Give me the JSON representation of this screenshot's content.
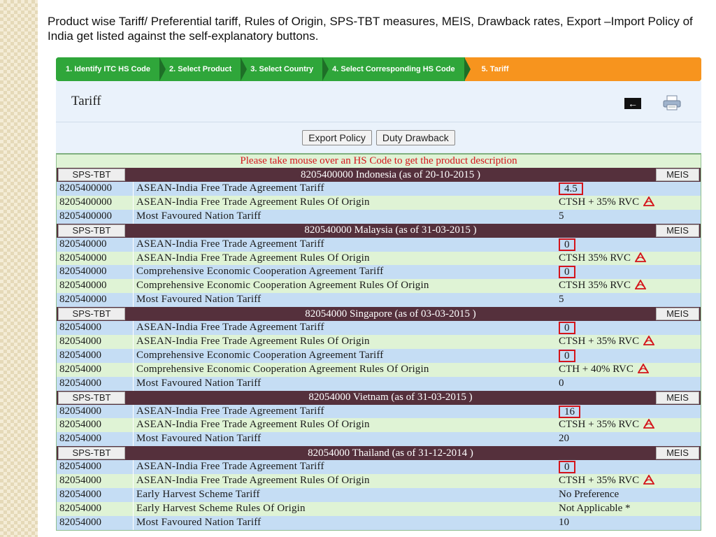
{
  "intro": "Product wise Tariff/ Preferential tariff, Rules of Origin, SPS-TBT measures, MEIS, Drawback rates, Export –Import Policy of India get listed against the self-explanatory buttons.",
  "steps": [
    "1. Identify ITC HS Code",
    "2. Select Product",
    "3. Select Country",
    "4. Select Corresponding HS Code",
    "5. Tariff"
  ],
  "header": {
    "title": "Tariff",
    "back_glyph": "←"
  },
  "buttons": {
    "export_policy": "Export Policy",
    "duty_drawback": "Duty Drawback"
  },
  "notice": "Please take mouse over an HS Code to get the product description",
  "sps_label": "SPS-TBT",
  "meis_label": "MEIS",
  "icons": {
    "back": "back-arrow-icon",
    "print": "printer-icon",
    "pdf": "pdf-icon"
  },
  "colors": {
    "step_green": "#2fa63a",
    "step_active": "#f7941e",
    "country_bar": "#55303c",
    "notice_red": "#d4141a"
  },
  "groups": [
    {
      "title": "8205400000 Indonesia (as of 20-10-2015 )",
      "rows": [
        {
          "code": "8205400000",
          "desc": "ASEAN-India Free Trade Agreement Tariff",
          "value": "4.5",
          "boxed": true,
          "pdf": false
        },
        {
          "code": "8205400000",
          "desc": "ASEAN-India Free Trade Agreement Rules Of Origin",
          "value": "CTSH + 35% RVC",
          "boxed": false,
          "pdf": true
        },
        {
          "code": "8205400000",
          "desc": "Most Favoured Nation Tariff",
          "value": "5",
          "boxed": false,
          "pdf": false
        }
      ]
    },
    {
      "title": "820540000 Malaysia (as of 31-03-2015 )",
      "rows": [
        {
          "code": "820540000",
          "desc": "ASEAN-India Free Trade Agreement Tariff",
          "value": "0",
          "boxed": true,
          "pdf": false
        },
        {
          "code": "820540000",
          "desc": "ASEAN-India Free Trade Agreement Rules Of Origin",
          "value": "CTSH 35% RVC",
          "boxed": false,
          "pdf": true
        },
        {
          "code": "820540000",
          "desc": "Comprehensive Economic Cooperation Agreement Tariff",
          "value": "0",
          "boxed": true,
          "pdf": false
        },
        {
          "code": "820540000",
          "desc": "Comprehensive Economic Cooperation Agreement Rules Of Origin",
          "value": "CTSH 35% RVC",
          "boxed": false,
          "pdf": true
        },
        {
          "code": "820540000",
          "desc": "Most Favoured Nation Tariff",
          "value": "5",
          "boxed": false,
          "pdf": false
        }
      ]
    },
    {
      "title": "82054000 Singapore (as of 03-03-2015 )",
      "rows": [
        {
          "code": "82054000",
          "desc": "ASEAN-India Free Trade Agreement Tariff",
          "value": "0",
          "boxed": true,
          "pdf": false
        },
        {
          "code": "82054000",
          "desc": "ASEAN-India Free Trade Agreement Rules Of Origin",
          "value": "CTSH + 35% RVC",
          "boxed": false,
          "pdf": true
        },
        {
          "code": "82054000",
          "desc": "Comprehensive Economic Cooperation Agreement Tariff",
          "value": "0",
          "boxed": true,
          "pdf": false
        },
        {
          "code": "82054000",
          "desc": "Comprehensive Economic Cooperation Agreement Rules Of Origin",
          "value": "CTH + 40% RVC",
          "boxed": false,
          "pdf": true
        },
        {
          "code": "82054000",
          "desc": "Most Favoured Nation Tariff",
          "value": "0",
          "boxed": false,
          "pdf": false
        }
      ]
    },
    {
      "title": "82054000 Vietnam (as of 31-03-2015 )",
      "rows": [
        {
          "code": "82054000",
          "desc": "ASEAN-India Free Trade Agreement Tariff",
          "value": "16",
          "boxed": true,
          "pdf": false
        },
        {
          "code": "82054000",
          "desc": "ASEAN-India Free Trade Agreement Rules Of Origin",
          "value": "CTSH + 35% RVC",
          "boxed": false,
          "pdf": true
        },
        {
          "code": "82054000",
          "desc": "Most Favoured Nation Tariff",
          "value": "20",
          "boxed": false,
          "pdf": false
        }
      ]
    },
    {
      "title": "82054000 Thailand (as of 31-12-2014 )",
      "rows": [
        {
          "code": "82054000",
          "desc": "ASEAN-India Free Trade Agreement Tariff",
          "value": "0",
          "boxed": true,
          "pdf": false
        },
        {
          "code": "82054000",
          "desc": "ASEAN-India Free Trade Agreement Rules Of Origin",
          "value": "CTSH + 35% RVC",
          "boxed": false,
          "pdf": true
        },
        {
          "code": "82054000",
          "desc": "Early Harvest Scheme Tariff",
          "value": "No Preference",
          "boxed": false,
          "pdf": false
        },
        {
          "code": "82054000",
          "desc": "Early Harvest Scheme Rules Of Origin",
          "value": "Not Applicable *",
          "boxed": false,
          "pdf": false
        },
        {
          "code": "82054000",
          "desc": "Most Favoured Nation Tariff",
          "value": "10",
          "boxed": false,
          "pdf": false
        }
      ]
    }
  ]
}
